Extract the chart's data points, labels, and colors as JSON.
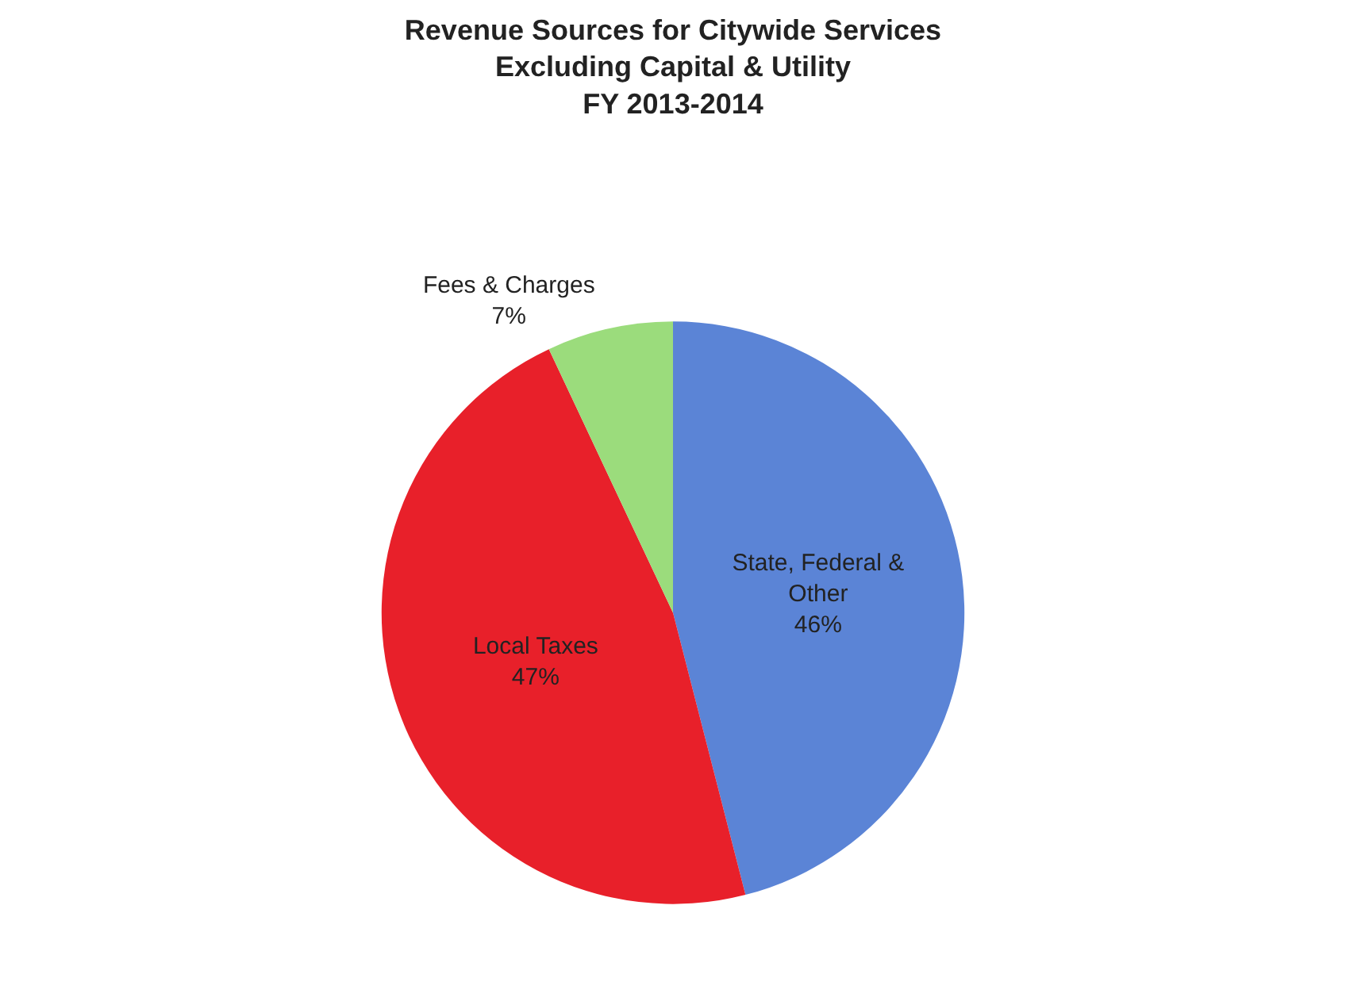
{
  "chart_data": {
    "type": "pie",
    "title": "Revenue Sources for Citywide Services\nExcluding Capital & Utility\nFY 2013-2014",
    "categories": [
      "State, Federal & Other",
      "Local Taxes",
      "Fees & Charges"
    ],
    "values": [
      46,
      47,
      7
    ],
    "value_labels": [
      "46%",
      "47%",
      "7%"
    ],
    "colors": [
      "#5b84d6",
      "#e8202a",
      "#9bdc7c"
    ],
    "legend": false
  }
}
